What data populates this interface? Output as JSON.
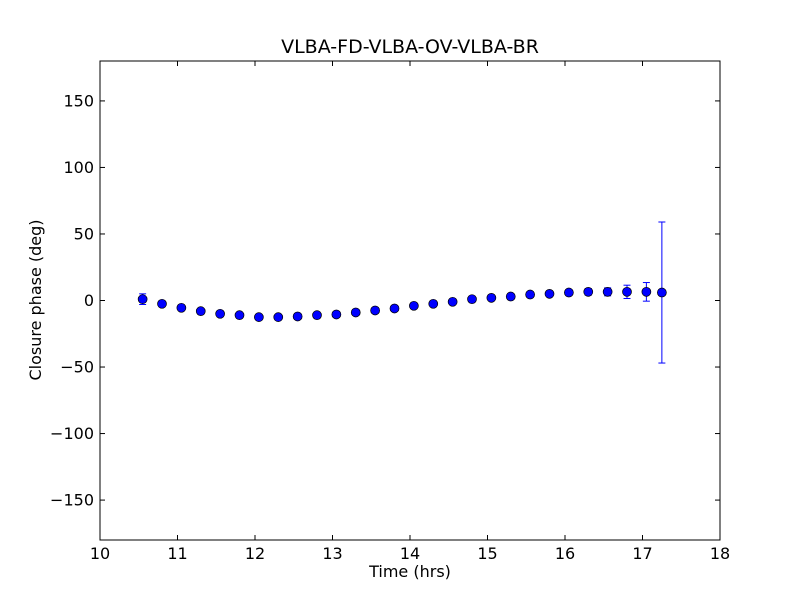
{
  "chart_data": {
    "type": "scatter",
    "title": "VLBA-FD-VLBA-OV-VLBA-BR",
    "xlabel": "Time (hrs)",
    "ylabel": "Closure phase (deg)",
    "xlim": [
      10,
      18
    ],
    "ylim": [
      -180,
      180
    ],
    "xticks": [
      10,
      11,
      12,
      13,
      14,
      15,
      16,
      17,
      18
    ],
    "yticks": [
      -150,
      -100,
      -50,
      0,
      50,
      100,
      150
    ],
    "ytick_labels": [
      "−150",
      "−100",
      "−50",
      "0",
      "50",
      "100",
      "150"
    ],
    "grid": false,
    "error_bars": true,
    "marker_color": "#0000ff",
    "errorbar_color": "#0000ff",
    "series": [
      {
        "points": [
          {
            "x": 10.55,
            "y": 1.0,
            "err": 4.0
          },
          {
            "x": 10.8,
            "y": -2.5,
            "err": 2.0
          },
          {
            "x": 11.05,
            "y": -5.5,
            "err": 2.0
          },
          {
            "x": 11.3,
            "y": -8.0,
            "err": 2.0
          },
          {
            "x": 11.55,
            "y": -10.0,
            "err": 2.0
          },
          {
            "x": 11.8,
            "y": -11.0,
            "err": 2.0
          },
          {
            "x": 12.05,
            "y": -12.5,
            "err": 2.0
          },
          {
            "x": 12.3,
            "y": -12.5,
            "err": 2.0
          },
          {
            "x": 12.55,
            "y": -12.0,
            "err": 2.0
          },
          {
            "x": 12.8,
            "y": -11.0,
            "err": 2.0
          },
          {
            "x": 13.05,
            "y": -10.5,
            "err": 2.0
          },
          {
            "x": 13.3,
            "y": -9.0,
            "err": 2.0
          },
          {
            "x": 13.55,
            "y": -7.5,
            "err": 2.0
          },
          {
            "x": 13.8,
            "y": -6.0,
            "err": 2.0
          },
          {
            "x": 14.05,
            "y": -4.0,
            "err": 2.0
          },
          {
            "x": 14.3,
            "y": -2.5,
            "err": 2.0
          },
          {
            "x": 14.55,
            "y": -1.0,
            "err": 2.0
          },
          {
            "x": 14.8,
            "y": 1.0,
            "err": 2.0
          },
          {
            "x": 15.05,
            "y": 2.0,
            "err": 2.0
          },
          {
            "x": 15.3,
            "y": 3.0,
            "err": 2.0
          },
          {
            "x": 15.55,
            "y": 4.5,
            "err": 2.0
          },
          {
            "x": 15.8,
            "y": 5.0,
            "err": 2.0
          },
          {
            "x": 16.05,
            "y": 6.0,
            "err": 2.0
          },
          {
            "x": 16.3,
            "y": 6.5,
            "err": 2.5
          },
          {
            "x": 16.55,
            "y": 6.5,
            "err": 3.0
          },
          {
            "x": 16.8,
            "y": 6.5,
            "err": 5.0
          },
          {
            "x": 17.05,
            "y": 6.5,
            "err": 7.0
          },
          {
            "x": 17.25,
            "y": 6.0,
            "err": 53.0
          }
        ]
      }
    ]
  }
}
